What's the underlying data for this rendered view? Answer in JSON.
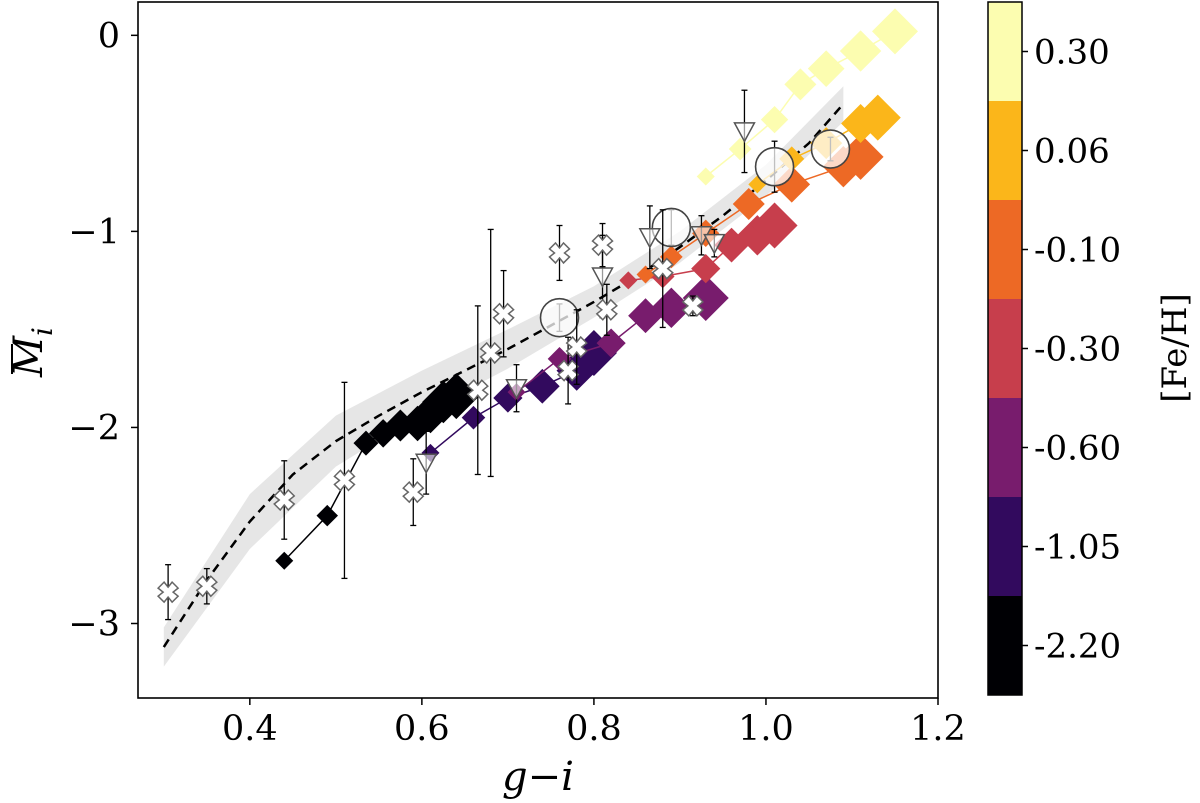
{
  "chart_data": {
    "type": "scatter",
    "xlabel": "g−i",
    "ylabel": "M̄_i",
    "xlim": [
      0.27,
      1.2
    ],
    "ylim": [
      -3.38,
      0.17
    ],
    "x_ticks": [
      0.4,
      0.6,
      0.8,
      1.0,
      1.2
    ],
    "x_tick_labels": [
      "0.4",
      "0.6",
      "0.8",
      "1.0",
      "1.2"
    ],
    "y_ticks": [
      0,
      -1,
      -2,
      -3
    ],
    "y_tick_labels": [
      "0",
      "−1",
      "−2",
      "−3"
    ],
    "colorbar": {
      "label": "[Fe/H]",
      "levels": [
        "0.30",
        "0.06",
        "-0.10",
        "-0.30",
        "-0.60",
        "-1.05",
        "-2.20"
      ],
      "colors": [
        "#fcfdb0",
        "#fbb61a",
        "#ed6925",
        "#c73e4c",
        "#781c6d",
        "#320a5e",
        "#000004"
      ]
    },
    "fit_curve": {
      "style": "dashed",
      "color": "#000000",
      "x": [
        0.3,
        0.35,
        0.4,
        0.45,
        0.5,
        0.55,
        0.6,
        0.65,
        0.7,
        0.75,
        0.8,
        0.85,
        0.9,
        0.95,
        1.0,
        1.05,
        1.09
      ],
      "y": [
        -3.12,
        -2.78,
        -2.48,
        -2.24,
        -2.07,
        -1.94,
        -1.82,
        -1.71,
        -1.6,
        -1.48,
        -1.36,
        -1.23,
        -1.08,
        -0.92,
        -0.74,
        -0.55,
        -0.35
      ]
    },
    "fit_band": {
      "color": "#d6d6d6",
      "x": [
        0.3,
        0.4,
        0.5,
        0.6,
        0.7,
        0.8,
        0.9,
        1.0,
        1.09
      ],
      "upper": [
        -3.02,
        -2.34,
        -1.94,
        -1.71,
        -1.5,
        -1.28,
        -1.0,
        -0.66,
        -0.26
      ],
      "lower": [
        -3.22,
        -2.62,
        -2.2,
        -1.93,
        -1.7,
        -1.44,
        -1.16,
        -0.82,
        -0.44
      ]
    },
    "series": [
      {
        "name": "-2.20",
        "color": "#000004",
        "x": [
          0.44,
          0.49,
          0.535,
          0.555,
          0.575,
          0.595,
          0.61,
          0.625,
          0.64
        ],
        "y": [
          -2.68,
          -2.45,
          -2.08,
          -2.03,
          -1.99,
          -1.98,
          -1.93,
          -1.87,
          -1.84
        ]
      },
      {
        "name": "-1.05",
        "color": "#320a5e",
        "x": [
          0.61,
          0.66,
          0.7,
          0.74,
          0.78,
          0.8
        ],
        "y": [
          -2.13,
          -1.95,
          -1.85,
          -1.79,
          -1.71,
          -1.62
        ]
      },
      {
        "name": "-0.60",
        "color": "#781c6d",
        "x": [
          0.71,
          0.76,
          0.82,
          0.86,
          0.89,
          0.93
        ],
        "y": [
          -1.82,
          -1.65,
          -1.57,
          -1.43,
          -1.39,
          -1.34
        ]
      },
      {
        "name": "-0.30",
        "color": "#c73e4c",
        "x": [
          0.84,
          0.88,
          0.93,
          0.96,
          0.99,
          1.01
        ],
        "y": [
          -1.25,
          -1.23,
          -1.19,
          -1.07,
          -1.02,
          -0.97
        ]
      },
      {
        "name": "-0.10",
        "color": "#ed6925",
        "x": [
          0.86,
          0.89,
          0.93,
          0.98,
          1.03,
          1.09,
          1.11
        ],
        "y": [
          -1.22,
          -1.13,
          -1.01,
          -0.86,
          -0.76,
          -0.67,
          -0.62
        ]
      },
      {
        "name": "0.06",
        "color": "#fbb61a",
        "x": [
          0.99,
          1.03,
          1.07,
          1.11,
          1.13
        ],
        "y": [
          -0.76,
          -0.63,
          -0.55,
          -0.45,
          -0.42
        ]
      },
      {
        "name": "0.30",
        "color": "#fcfdb0",
        "x": [
          0.93,
          0.97,
          1.01,
          1.04,
          1.07,
          1.11,
          1.15
        ],
        "y": [
          -0.72,
          -0.58,
          -0.43,
          -0.25,
          -0.17,
          -0.08,
          0.02
        ]
      }
    ],
    "observations_cross": [
      {
        "x": 0.305,
        "y": -2.84,
        "err": 0.14
      },
      {
        "x": 0.35,
        "y": -2.81,
        "err": 0.09
      },
      {
        "x": 0.44,
        "y": -2.37,
        "err": 0.2
      },
      {
        "x": 0.51,
        "y": -2.27,
        "err": 0.5
      },
      {
        "x": 0.59,
        "y": -2.33,
        "err": 0.17
      },
      {
        "x": 0.665,
        "y": -1.81,
        "err": 0.43
      },
      {
        "x": 0.68,
        "y": -1.62,
        "err": 0.63
      },
      {
        "x": 0.695,
        "y": -1.42,
        "err": 0.22
      },
      {
        "x": 0.76,
        "y": -1.11,
        "err": 0.14
      },
      {
        "x": 0.77,
        "y": -1.71,
        "err": 0.17
      },
      {
        "x": 0.78,
        "y": -1.59,
        "err": 0.19
      },
      {
        "x": 0.81,
        "y": -1.07,
        "err": 0.11
      },
      {
        "x": 0.815,
        "y": -1.4,
        "err": 0.13
      },
      {
        "x": 0.88,
        "y": -1.19,
        "err": 0.3
      },
      {
        "x": 0.915,
        "y": -1.38,
        "err": 0.05
      }
    ],
    "observations_triangle": [
      {
        "x": 0.605,
        "y": -2.18,
        "err": 0.16
      },
      {
        "x": 0.71,
        "y": -1.8,
        "err": 0.12
      },
      {
        "x": 0.81,
        "y": -1.23,
        "err": 0.21
      },
      {
        "x": 0.865,
        "y": -1.03,
        "err": 0.16
      },
      {
        "x": 0.925,
        "y": -1.02,
        "err": 0.1
      },
      {
        "x": 0.94,
        "y": -1.06,
        "err": 0.07
      },
      {
        "x": 0.975,
        "y": -0.49,
        "err": 0.21
      }
    ],
    "observations_circle": [
      {
        "x": 0.76,
        "y": -1.44,
        "err": 0.07
      },
      {
        "x": 0.89,
        "y": -0.98,
        "err": 0.09
      },
      {
        "x": 1.01,
        "y": -0.67,
        "err": 0.13
      },
      {
        "x": 1.075,
        "y": -0.58,
        "err": 0.06
      }
    ]
  }
}
